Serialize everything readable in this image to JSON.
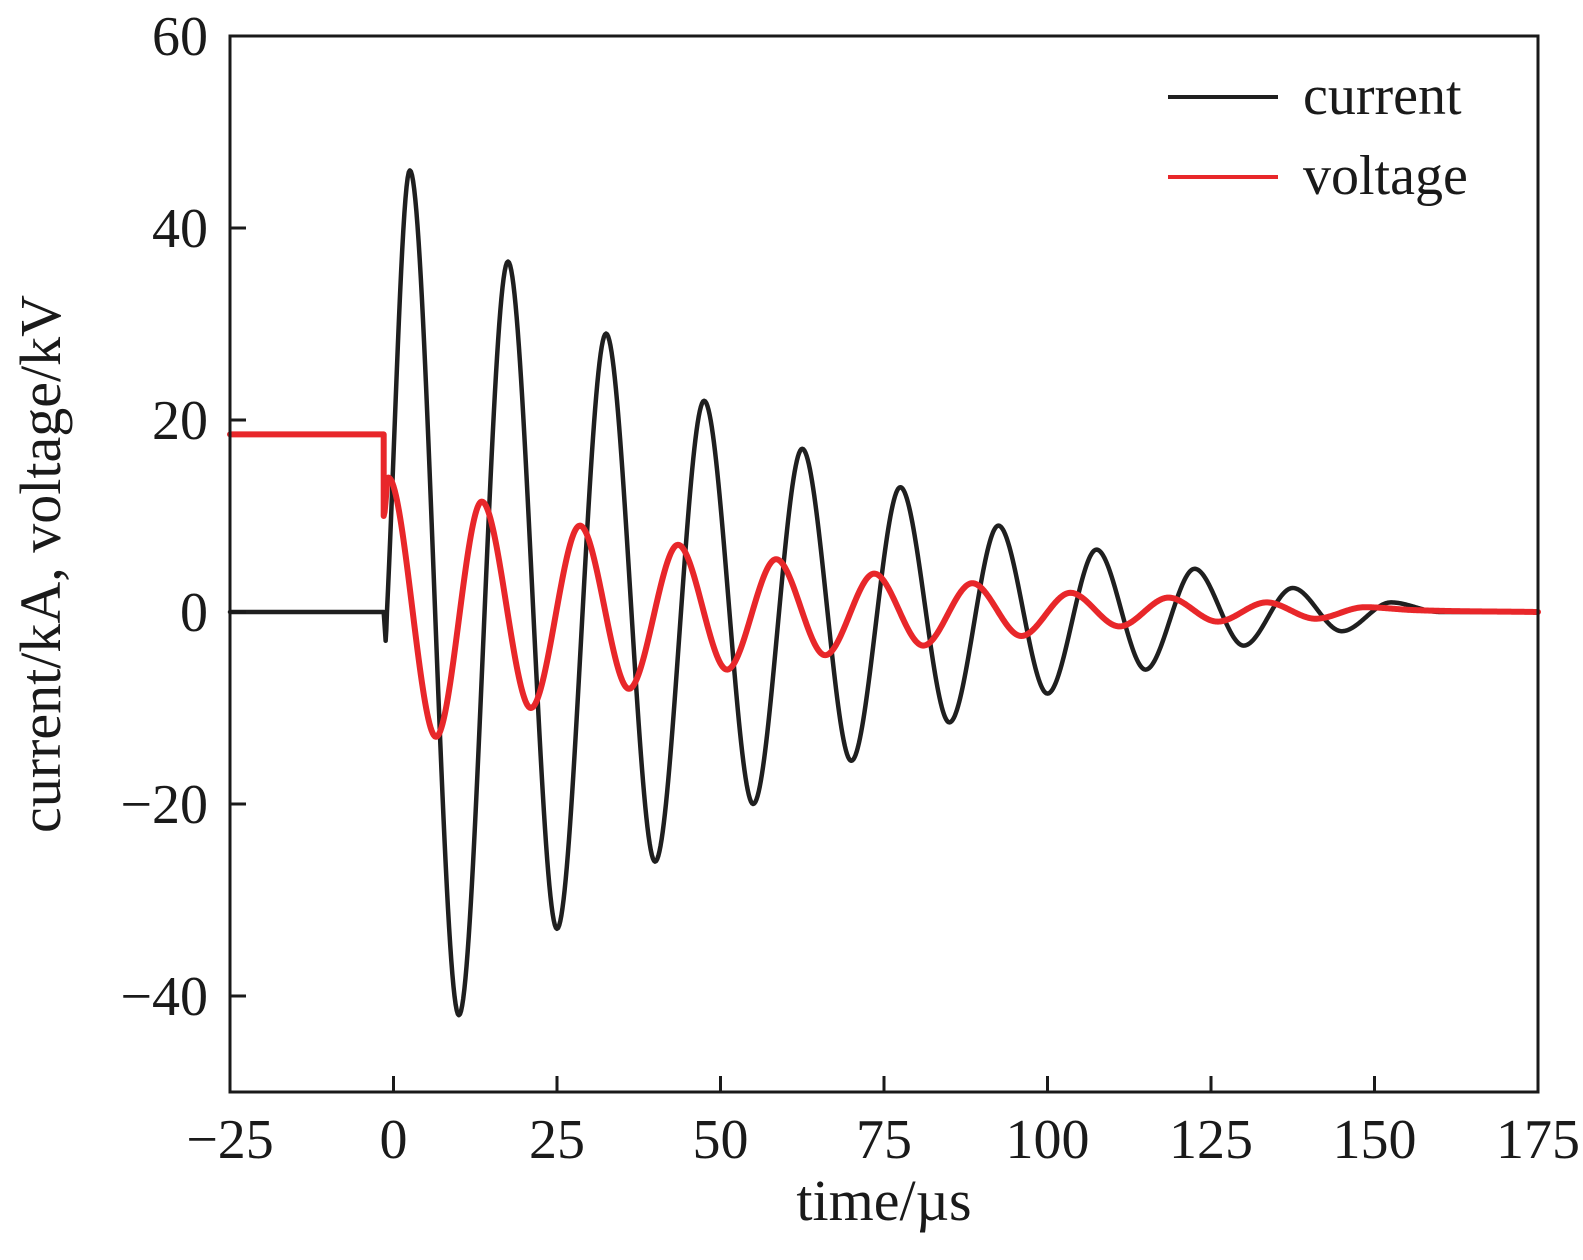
{
  "chart_data": {
    "type": "line",
    "xlabel": "time/µs",
    "ylabel": "current/kA, voltage/kV",
    "xlim": [
      -25,
      175
    ],
    "ylim": [
      -50,
      60
    ],
    "xticks": [
      -25,
      0,
      25,
      50,
      75,
      100,
      125,
      150,
      175
    ],
    "xtick_labels": [
      "−25",
      "0",
      "25",
      "50",
      "75",
      "100",
      "125",
      "150",
      "175"
    ],
    "yticks": [
      -40,
      -20,
      0,
      20,
      40,
      60
    ],
    "ytick_labels": [
      "−40",
      "−20",
      "0",
      "20",
      "40",
      "60"
    ],
    "grid": false,
    "legend_position": "top-right",
    "series": [
      {
        "name": "current",
        "color": "#1f1f1f",
        "x": [
          -25,
          -1.5,
          -1.2,
          -1.0,
          2.5,
          10,
          17.5,
          25,
          32.5,
          40,
          47.5,
          55,
          62.5,
          70,
          77.5,
          85,
          92.5,
          100,
          107.5,
          115,
          122.5,
          130,
          137.5,
          145,
          152.5,
          160,
          175
        ],
        "y": [
          0,
          0,
          -3,
          0,
          46,
          -42,
          36.5,
          -33,
          29,
          -26,
          22,
          -20,
          17,
          -15.5,
          13,
          -11.5,
          9,
          -8.5,
          6.5,
          -6,
          4.5,
          -3.5,
          2.5,
          -2,
          1,
          0,
          0
        ]
      },
      {
        "name": "voltage",
        "color": "#e8272a",
        "x": [
          -25,
          -1.5,
          -1.5,
          -0.8,
          6.5,
          13.5,
          21,
          28.5,
          36,
          43.5,
          51,
          58.5,
          66,
          73.5,
          81,
          88.5,
          96,
          103.5,
          111,
          118.5,
          126,
          133.5,
          141,
          148.5,
          156,
          175
        ],
        "y": [
          18.5,
          18.5,
          10,
          14,
          -13,
          11.5,
          -10,
          9,
          -8,
          7,
          -6,
          5.5,
          -4.5,
          4,
          -3.5,
          3,
          -2.5,
          2,
          -1.5,
          1.5,
          -1,
          1,
          -0.7,
          0.5,
          0.2,
          0
        ]
      }
    ]
  }
}
